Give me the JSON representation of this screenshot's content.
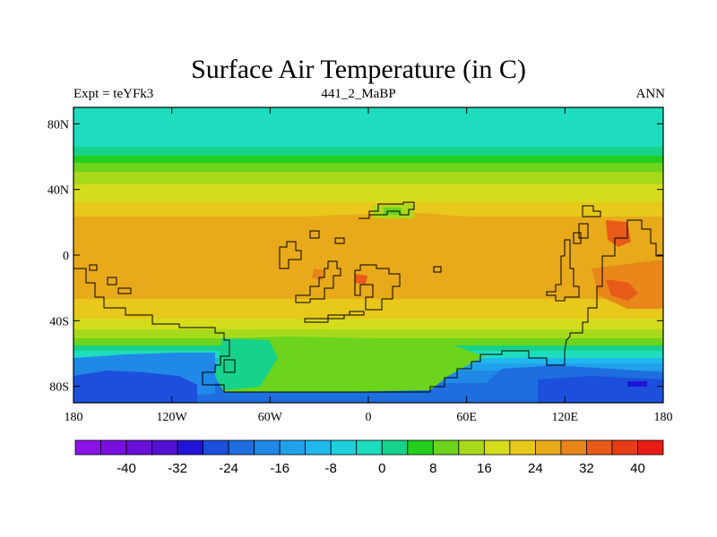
{
  "title": "Surface Air Temperature (in C)",
  "left_subtitle": "Expt = teYFk3",
  "center_subtitle": "441_2_MaBP",
  "right_subtitle": "ANN",
  "lat_ticks": [
    {
      "value": 80,
      "label": "80N"
    },
    {
      "value": 40,
      "label": "40N"
    },
    {
      "value": 0,
      "label": "0"
    },
    {
      "value": -40,
      "label": "40S"
    },
    {
      "value": -80,
      "label": "80S"
    }
  ],
  "lon_ticks": [
    {
      "value": -180,
      "label": "180"
    },
    {
      "value": -120,
      "label": "120W"
    },
    {
      "value": -60,
      "label": "60W"
    },
    {
      "value": 0,
      "label": "0"
    },
    {
      "value": 60,
      "label": "60E"
    },
    {
      "value": 120,
      "label": "120E"
    },
    {
      "value": 180,
      "label": "180"
    }
  ],
  "colorbar": {
    "colors": [
      "#8a12e6",
      "#7a10e0",
      "#6a10d8",
      "#5210d0",
      "#2014d8",
      "#1c50dc",
      "#1e6ee0",
      "#2088e6",
      "#20a2ea",
      "#20b8ec",
      "#1ed0dc",
      "#1edcbe",
      "#16d28a",
      "#22ce1e",
      "#6cd41c",
      "#a8da1c",
      "#d4dc1c",
      "#e8c81a",
      "#e8aa1a",
      "#e8861a",
      "#e85a18",
      "#e83c16",
      "#e81c14"
    ],
    "labels": [
      {
        "index": 2,
        "text": "-40"
      },
      {
        "index": 4,
        "text": "-32"
      },
      {
        "index": 6,
        "text": "-24"
      },
      {
        "index": 8,
        "text": "-16"
      },
      {
        "index": 10,
        "text": "-8"
      },
      {
        "index": 12,
        "text": "0"
      },
      {
        "index": 14,
        "text": "8"
      },
      {
        "index": 16,
        "text": "16"
      },
      {
        "index": 18,
        "text": "24"
      },
      {
        "index": 20,
        "text": "32"
      },
      {
        "index": 22,
        "text": "40"
      }
    ]
  }
}
